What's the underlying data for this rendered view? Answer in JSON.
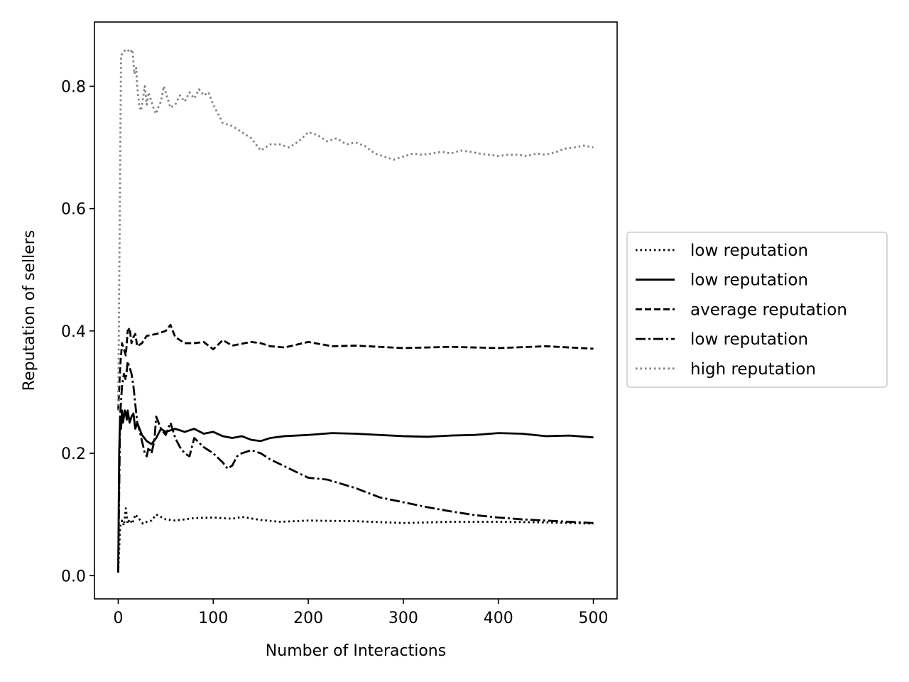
{
  "chart_data": {
    "type": "line",
    "title": "",
    "xlabel": "Number of Interactions",
    "ylabel": "Reputation of sellers",
    "xlim": [
      -25,
      525
    ],
    "ylim": [
      -0.038,
      0.905
    ],
    "x_ticks": [
      0,
      100,
      200,
      300,
      400,
      500
    ],
    "x_tick_labels": [
      "0",
      "100",
      "200",
      "300",
      "400",
      "500"
    ],
    "y_ticks": [
      0.0,
      0.2,
      0.4,
      0.6,
      0.8
    ],
    "y_tick_labels": [
      "0.0",
      "0.2",
      "0.4",
      "0.6",
      "0.8"
    ],
    "grid": false,
    "legend_position": "center-right, outside plot",
    "series": [
      {
        "name": "low reputation",
        "style": "dotted",
        "color": "#000000",
        "x": [
          0,
          2,
          4,
          6,
          8,
          10,
          12,
          15,
          18,
          22,
          26,
          30,
          35,
          40,
          50,
          60,
          80,
          100,
          120,
          130,
          150,
          170,
          200,
          250,
          300,
          350,
          400,
          450,
          500
        ],
        "y": [
          0.005,
          0.08,
          0.09,
          0.082,
          0.11,
          0.085,
          0.092,
          0.085,
          0.1,
          0.093,
          0.085,
          0.088,
          0.09,
          0.1,
          0.092,
          0.09,
          0.094,
          0.095,
          0.093,
          0.096,
          0.091,
          0.088,
          0.09,
          0.089,
          0.086,
          0.088,
          0.088,
          0.087,
          0.085
        ]
      },
      {
        "name": "low reputation",
        "style": "solid",
        "color": "#000000",
        "x": [
          0,
          1,
          2,
          3,
          4,
          5,
          6,
          7,
          8,
          9,
          10,
          12,
          14,
          16,
          18,
          20,
          25,
          30,
          35,
          40,
          45,
          50,
          60,
          70,
          80,
          90,
          100,
          110,
          120,
          130,
          140,
          150,
          160,
          175,
          200,
          225,
          250,
          275,
          300,
          325,
          350,
          375,
          400,
          425,
          450,
          475,
          500
        ],
        "y": [
          0.005,
          0.2,
          0.26,
          0.24,
          0.27,
          0.25,
          0.26,
          0.27,
          0.265,
          0.255,
          0.27,
          0.25,
          0.26,
          0.265,
          0.24,
          0.25,
          0.23,
          0.22,
          0.215,
          0.225,
          0.24,
          0.235,
          0.24,
          0.235,
          0.24,
          0.232,
          0.235,
          0.228,
          0.225,
          0.228,
          0.222,
          0.22,
          0.225,
          0.228,
          0.23,
          0.233,
          0.232,
          0.23,
          0.228,
          0.227,
          0.229,
          0.23,
          0.233,
          0.232,
          0.228,
          0.229,
          0.226
        ]
      },
      {
        "name": "average reputation",
        "style": "dashed",
        "color": "#000000",
        "x": [
          0,
          2,
          4,
          6,
          8,
          10,
          12,
          14,
          16,
          18,
          20,
          25,
          30,
          40,
          50,
          55,
          60,
          70,
          80,
          90,
          100,
          110,
          120,
          140,
          150,
          160,
          175,
          200,
          225,
          250,
          300,
          350,
          400,
          450,
          500
        ],
        "y": [
          0.27,
          0.34,
          0.38,
          0.37,
          0.36,
          0.4,
          0.405,
          0.38,
          0.39,
          0.395,
          0.375,
          0.38,
          0.392,
          0.395,
          0.4,
          0.41,
          0.39,
          0.38,
          0.38,
          0.382,
          0.37,
          0.385,
          0.376,
          0.382,
          0.38,
          0.375,
          0.373,
          0.382,
          0.375,
          0.376,
          0.372,
          0.374,
          0.372,
          0.375,
          0.371
        ]
      },
      {
        "name": "low reputation",
        "style": "dashdot",
        "color": "#000000",
        "x": [
          0,
          2,
          4,
          6,
          8,
          10,
          12,
          14,
          16,
          18,
          20,
          22,
          25,
          28,
          30,
          32,
          35,
          38,
          40,
          45,
          50,
          55,
          60,
          65,
          70,
          75,
          80,
          90,
          100,
          110,
          115,
          120,
          125,
          130,
          140,
          150,
          160,
          180,
          200,
          220,
          250,
          275,
          300,
          325,
          350,
          375,
          400,
          425,
          450,
          475,
          500
        ],
        "y": [
          0.005,
          0.26,
          0.31,
          0.33,
          0.32,
          0.35,
          0.34,
          0.33,
          0.31,
          0.28,
          0.25,
          0.24,
          0.22,
          0.2,
          0.195,
          0.21,
          0.2,
          0.22,
          0.26,
          0.24,
          0.23,
          0.25,
          0.225,
          0.21,
          0.2,
          0.195,
          0.225,
          0.21,
          0.2,
          0.185,
          0.175,
          0.18,
          0.195,
          0.2,
          0.205,
          0.2,
          0.19,
          0.175,
          0.16,
          0.157,
          0.143,
          0.128,
          0.12,
          0.112,
          0.105,
          0.099,
          0.095,
          0.092,
          0.09,
          0.088,
          0.086
        ]
      },
      {
        "name": "high reputation",
        "style": "dotted",
        "color": "#808080",
        "x": [
          0,
          3,
          5,
          8,
          10,
          12,
          15,
          17,
          19,
          20,
          22,
          24,
          26,
          28,
          30,
          32,
          35,
          38,
          40,
          42,
          45,
          48,
          50,
          55,
          60,
          65,
          70,
          75,
          80,
          85,
          90,
          95,
          100,
          105,
          110,
          120,
          130,
          140,
          150,
          160,
          170,
          180,
          190,
          200,
          210,
          220,
          230,
          240,
          250,
          260,
          270,
          280,
          290,
          300,
          310,
          320,
          330,
          340,
          350,
          360,
          370,
          380,
          390,
          400,
          410,
          420,
          430,
          440,
          450,
          460,
          470,
          480,
          490,
          500
        ],
        "y": [
          0.27,
          0.85,
          0.855,
          0.86,
          0.86,
          0.855,
          0.86,
          0.82,
          0.83,
          0.8,
          0.77,
          0.76,
          0.78,
          0.8,
          0.77,
          0.79,
          0.775,
          0.76,
          0.755,
          0.765,
          0.775,
          0.8,
          0.79,
          0.765,
          0.77,
          0.785,
          0.775,
          0.79,
          0.78,
          0.795,
          0.785,
          0.79,
          0.77,
          0.755,
          0.74,
          0.735,
          0.725,
          0.715,
          0.695,
          0.705,
          0.705,
          0.7,
          0.71,
          0.725,
          0.72,
          0.71,
          0.715,
          0.705,
          0.708,
          0.702,
          0.69,
          0.685,
          0.68,
          0.685,
          0.69,
          0.688,
          0.69,
          0.693,
          0.69,
          0.695,
          0.693,
          0.69,
          0.688,
          0.686,
          0.688,
          0.688,
          0.686,
          0.69,
          0.688,
          0.692,
          0.698,
          0.7,
          0.703,
          0.7
        ]
      }
    ]
  }
}
